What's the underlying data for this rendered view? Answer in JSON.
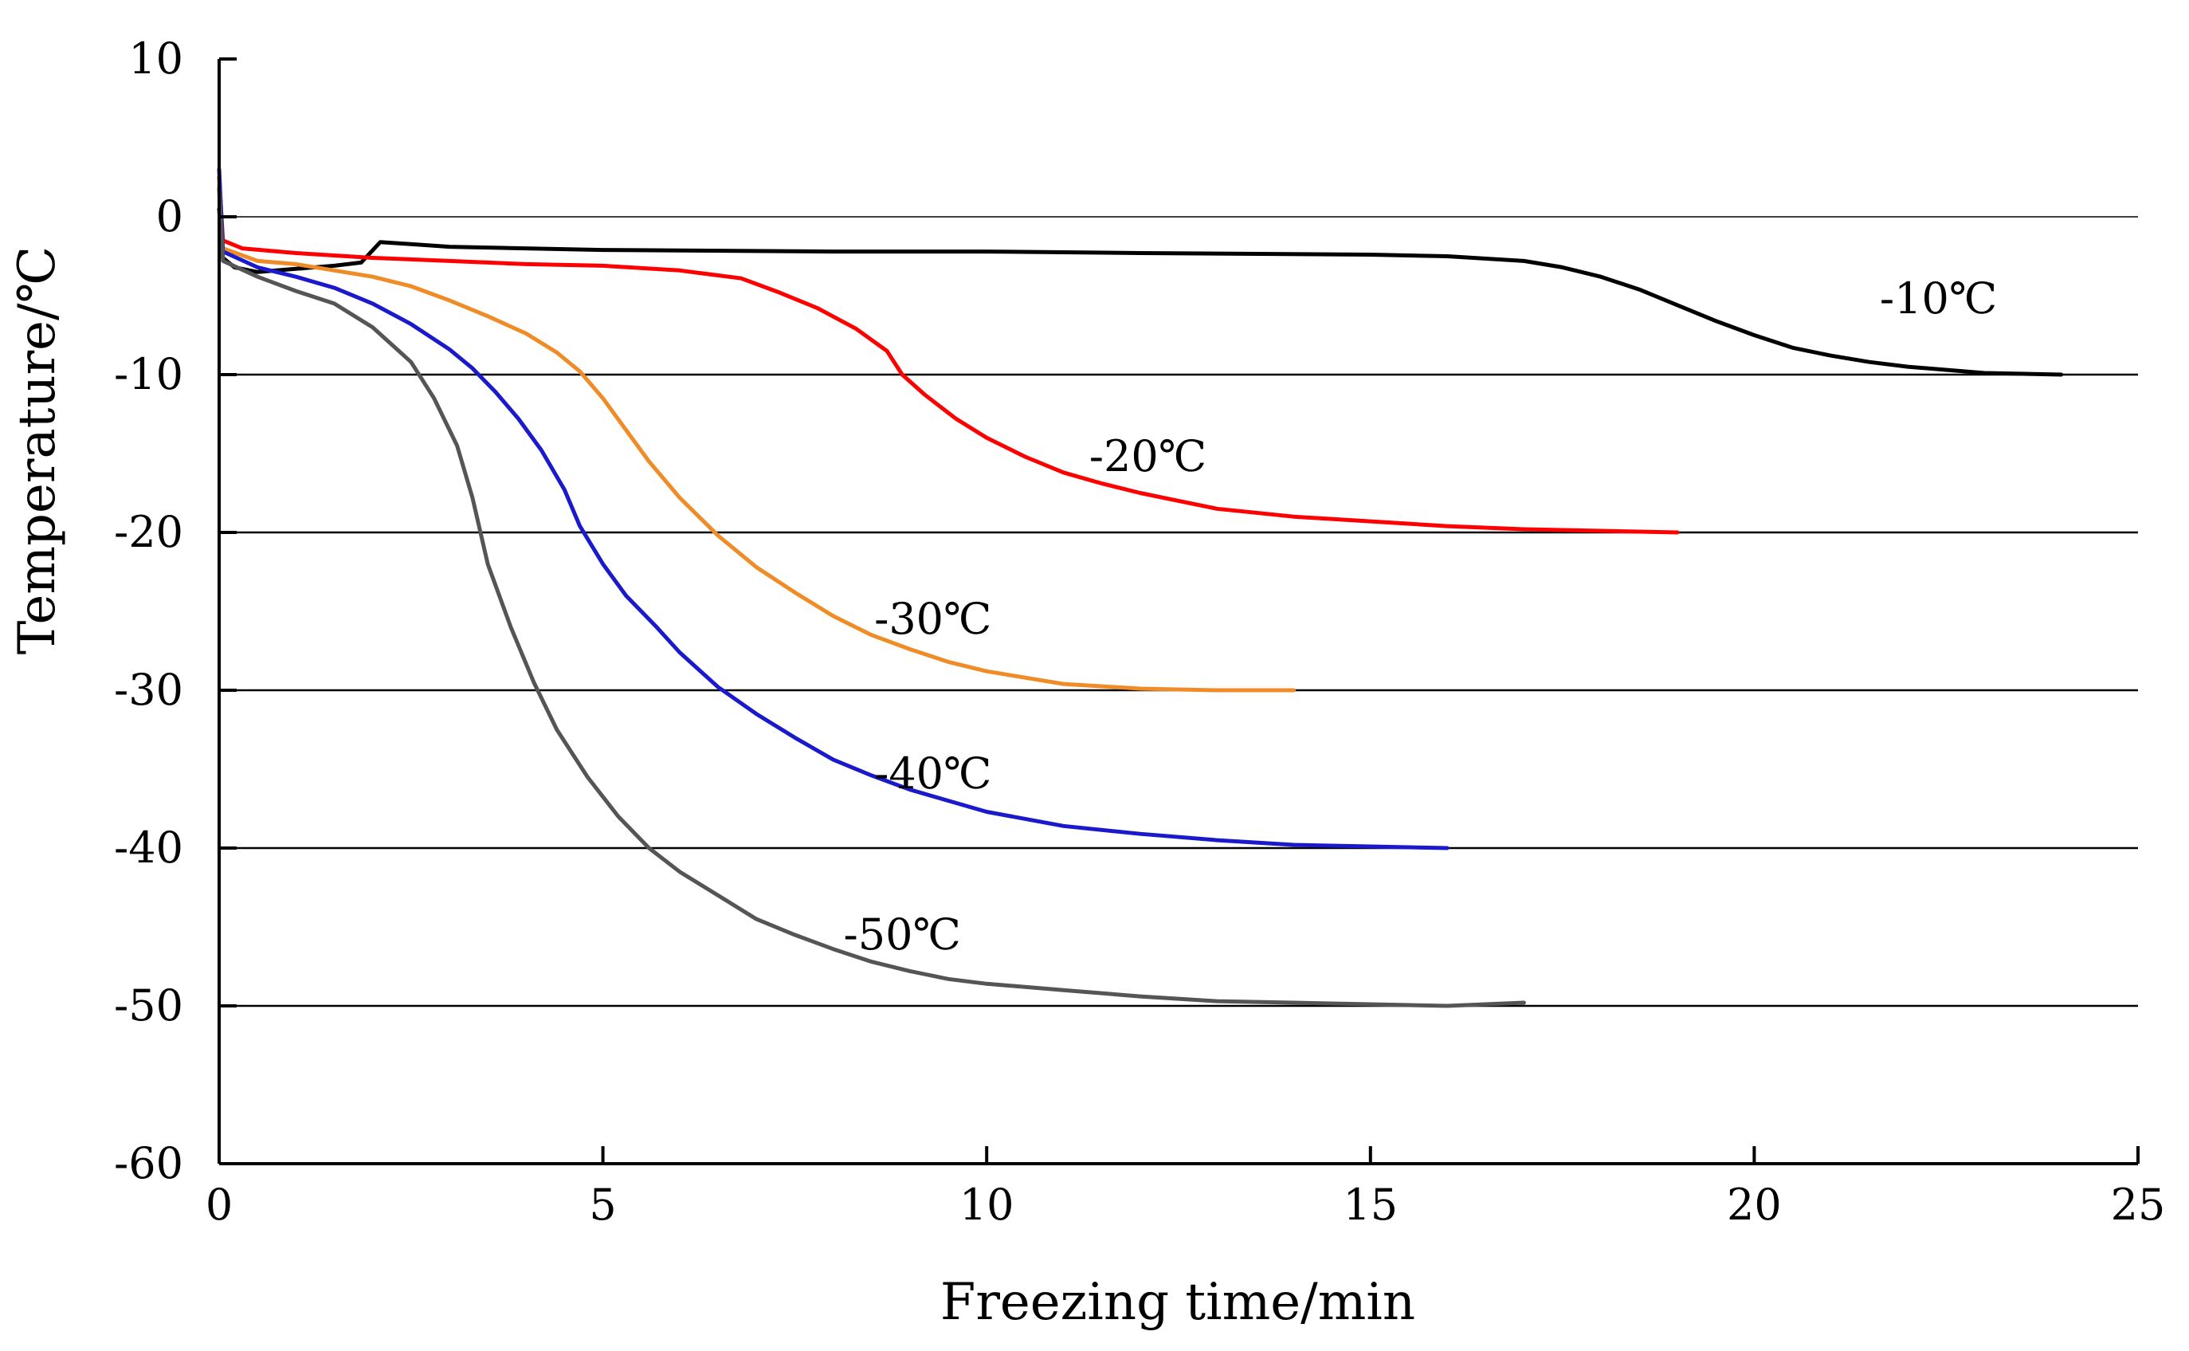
{
  "chart_data": {
    "type": "line",
    "title": "",
    "xlabel": "Freezing time/min",
    "ylabel": "Temperature/℃",
    "xlim": [
      0,
      25
    ],
    "ylim": [
      -60,
      10
    ],
    "xticks": [
      0,
      5,
      10,
      15,
      20,
      25
    ],
    "yticks": [
      10,
      0,
      -10,
      -20,
      -30,
      -40,
      -50,
      -60
    ],
    "gridlines": [
      0,
      -10,
      -20,
      -30,
      -40,
      -50
    ],
    "series": [
      {
        "name": "-10℃",
        "color": "#000000",
        "points": [
          [
            0,
            0.5
          ],
          [
            0.05,
            -2.6
          ],
          [
            0.2,
            -3.2
          ],
          [
            0.5,
            -3.5
          ],
          [
            1,
            -3.3
          ],
          [
            1.5,
            -3.1
          ],
          [
            1.85,
            -2.9
          ],
          [
            2.1,
            -1.6
          ],
          [
            3,
            -1.9
          ],
          [
            5,
            -2.1
          ],
          [
            8,
            -2.2
          ],
          [
            10,
            -2.2
          ],
          [
            12,
            -2.3
          ],
          [
            15,
            -2.4
          ],
          [
            16,
            -2.5
          ],
          [
            17,
            -2.8
          ],
          [
            17.5,
            -3.2
          ],
          [
            18,
            -3.8
          ],
          [
            18.5,
            -4.6
          ],
          [
            19,
            -5.6
          ],
          [
            19.5,
            -6.6
          ],
          [
            20,
            -7.5
          ],
          [
            20.5,
            -8.3
          ],
          [
            21,
            -8.8
          ],
          [
            21.5,
            -9.2
          ],
          [
            22,
            -9.5
          ],
          [
            23,
            -9.9
          ],
          [
            24,
            -10.0
          ]
        ]
      },
      {
        "name": "-20℃",
        "color": "#ff0000",
        "points": [
          [
            0,
            2.5
          ],
          [
            0.05,
            -1.5
          ],
          [
            0.3,
            -2.0
          ],
          [
            1,
            -2.3
          ],
          [
            2,
            -2.6
          ],
          [
            3,
            -2.8
          ],
          [
            4,
            -3.0
          ],
          [
            5,
            -3.1
          ],
          [
            6,
            -3.4
          ],
          [
            6.8,
            -3.9
          ],
          [
            7.3,
            -4.8
          ],
          [
            7.8,
            -5.8
          ],
          [
            8.3,
            -7.1
          ],
          [
            8.7,
            -8.5
          ],
          [
            8.9,
            -10.0
          ],
          [
            9.2,
            -11.3
          ],
          [
            9.6,
            -12.8
          ],
          [
            10,
            -14.0
          ],
          [
            10.5,
            -15.2
          ],
          [
            11,
            -16.2
          ],
          [
            11.5,
            -16.9
          ],
          [
            12,
            -17.5
          ],
          [
            12.5,
            -18.0
          ],
          [
            13,
            -18.5
          ],
          [
            14,
            -19.0
          ],
          [
            15,
            -19.3
          ],
          [
            16,
            -19.6
          ],
          [
            17,
            -19.8
          ],
          [
            18,
            -19.9
          ],
          [
            19,
            -20.0
          ]
        ]
      },
      {
        "name": "-30℃",
        "color": "#f08c28",
        "points": [
          [
            0,
            2.0
          ],
          [
            0.05,
            -2.0
          ],
          [
            0.5,
            -2.8
          ],
          [
            1,
            -3.0
          ],
          [
            1.5,
            -3.4
          ],
          [
            2,
            -3.8
          ],
          [
            2.5,
            -4.4
          ],
          [
            3,
            -5.3
          ],
          [
            3.5,
            -6.3
          ],
          [
            4,
            -7.4
          ],
          [
            4.4,
            -8.6
          ],
          [
            4.7,
            -9.8
          ],
          [
            5,
            -11.5
          ],
          [
            5.3,
            -13.5
          ],
          [
            5.6,
            -15.5
          ],
          [
            6,
            -17.8
          ],
          [
            6.5,
            -20.2
          ],
          [
            7,
            -22.2
          ],
          [
            7.5,
            -23.8
          ],
          [
            8,
            -25.3
          ],
          [
            8.5,
            -26.5
          ],
          [
            9,
            -27.4
          ],
          [
            9.5,
            -28.2
          ],
          [
            10,
            -28.8
          ],
          [
            10.5,
            -29.2
          ],
          [
            11,
            -29.6
          ],
          [
            12,
            -29.9
          ],
          [
            13,
            -30.0
          ],
          [
            14,
            -30.0
          ]
        ]
      },
      {
        "name": "-40℃",
        "color": "#1a1acc",
        "points": [
          [
            0,
            3.0
          ],
          [
            0.05,
            -2.2
          ],
          [
            0.5,
            -3.2
          ],
          [
            1,
            -3.8
          ],
          [
            1.5,
            -4.5
          ],
          [
            2,
            -5.5
          ],
          [
            2.5,
            -6.8
          ],
          [
            3,
            -8.4
          ],
          [
            3.3,
            -9.6
          ],
          [
            3.6,
            -11.1
          ],
          [
            3.9,
            -12.8
          ],
          [
            4.2,
            -14.8
          ],
          [
            4.5,
            -17.3
          ],
          [
            4.7,
            -19.6
          ],
          [
            5,
            -22.0
          ],
          [
            5.3,
            -24.0
          ],
          [
            5.7,
            -26.0
          ],
          [
            6,
            -27.6
          ],
          [
            6.5,
            -29.8
          ],
          [
            7,
            -31.5
          ],
          [
            7.5,
            -33.0
          ],
          [
            8,
            -34.4
          ],
          [
            8.5,
            -35.4
          ],
          [
            9,
            -36.3
          ],
          [
            9.5,
            -37.0
          ],
          [
            10,
            -37.7
          ],
          [
            11,
            -38.6
          ],
          [
            12,
            -39.1
          ],
          [
            13,
            -39.5
          ],
          [
            14,
            -39.8
          ],
          [
            15,
            -39.9
          ],
          [
            16,
            -40.0
          ]
        ]
      },
      {
        "name": "-50℃",
        "color": "#555555",
        "points": [
          [
            0,
            1.8
          ],
          [
            0.05,
            -2.8
          ],
          [
            0.5,
            -3.8
          ],
          [
            1,
            -4.7
          ],
          [
            1.5,
            -5.5
          ],
          [
            2,
            -7.0
          ],
          [
            2.5,
            -9.2
          ],
          [
            2.8,
            -11.5
          ],
          [
            3.1,
            -14.5
          ],
          [
            3.3,
            -17.8
          ],
          [
            3.5,
            -22.0
          ],
          [
            3.8,
            -26.0
          ],
          [
            4.1,
            -29.5
          ],
          [
            4.4,
            -32.5
          ],
          [
            4.8,
            -35.5
          ],
          [
            5.2,
            -38.0
          ],
          [
            5.6,
            -40.0
          ],
          [
            6,
            -41.5
          ],
          [
            6.5,
            -43.0
          ],
          [
            7,
            -44.5
          ],
          [
            7.5,
            -45.5
          ],
          [
            8,
            -46.4
          ],
          [
            8.5,
            -47.2
          ],
          [
            9,
            -47.8
          ],
          [
            9.5,
            -48.3
          ],
          [
            10,
            -48.6
          ],
          [
            11,
            -49.0
          ],
          [
            12,
            -49.4
          ],
          [
            13,
            -49.7
          ],
          [
            14,
            -49.8
          ],
          [
            15,
            -49.9
          ],
          [
            16,
            -50.0
          ],
          [
            17,
            -49.8
          ]
        ]
      }
    ],
    "annotations": [
      {
        "text": "-10℃",
        "x": 22.4,
        "y": -5.2
      },
      {
        "text": "-20℃",
        "x": 12.1,
        "y": -15.2
      },
      {
        "text": "-30℃",
        "x": 9.3,
        "y": -25.5
      },
      {
        "text": "-40℃",
        "x": 9.3,
        "y": -35.3
      },
      {
        "text": "-50℃",
        "x": 8.9,
        "y": -45.5
      }
    ],
    "axis_color": "#000000",
    "grid_color": "#000000"
  }
}
